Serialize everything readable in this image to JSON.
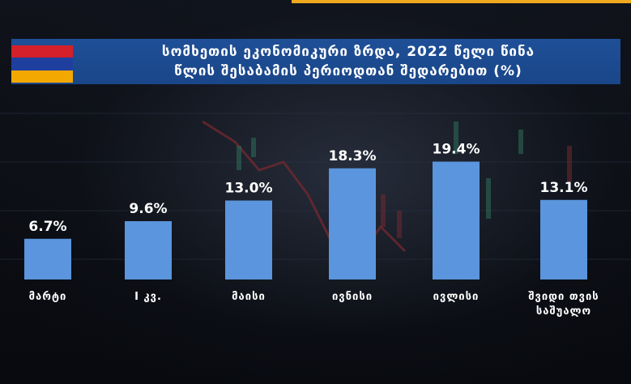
{
  "title": {
    "line1": "სომხეთის ეკონომიკური ზრდა, 2022 წელი წინა",
    "line2": "წლის შესაბამის პერიოდთან შედარებით (%)"
  },
  "flag_colors": [
    "#d4202a",
    "#1f3f9f",
    "#f2a800"
  ],
  "chart_data": {
    "type": "bar",
    "categories": [
      "მარტი",
      "I კვ.",
      "მაისი",
      "ივნისი",
      "ივლისი",
      [
        "შვიდი თვის",
        "საშუალო"
      ]
    ],
    "values": [
      6.7,
      9.6,
      13.0,
      18.3,
      19.4,
      13.1
    ],
    "labels": [
      "6.7%",
      "9.6%",
      "13.0%",
      "18.3%",
      "19.4%",
      "13.1%"
    ],
    "ylim": [
      0,
      20
    ],
    "bar_color": "#5b95dd",
    "grid": false,
    "legend": "none"
  }
}
